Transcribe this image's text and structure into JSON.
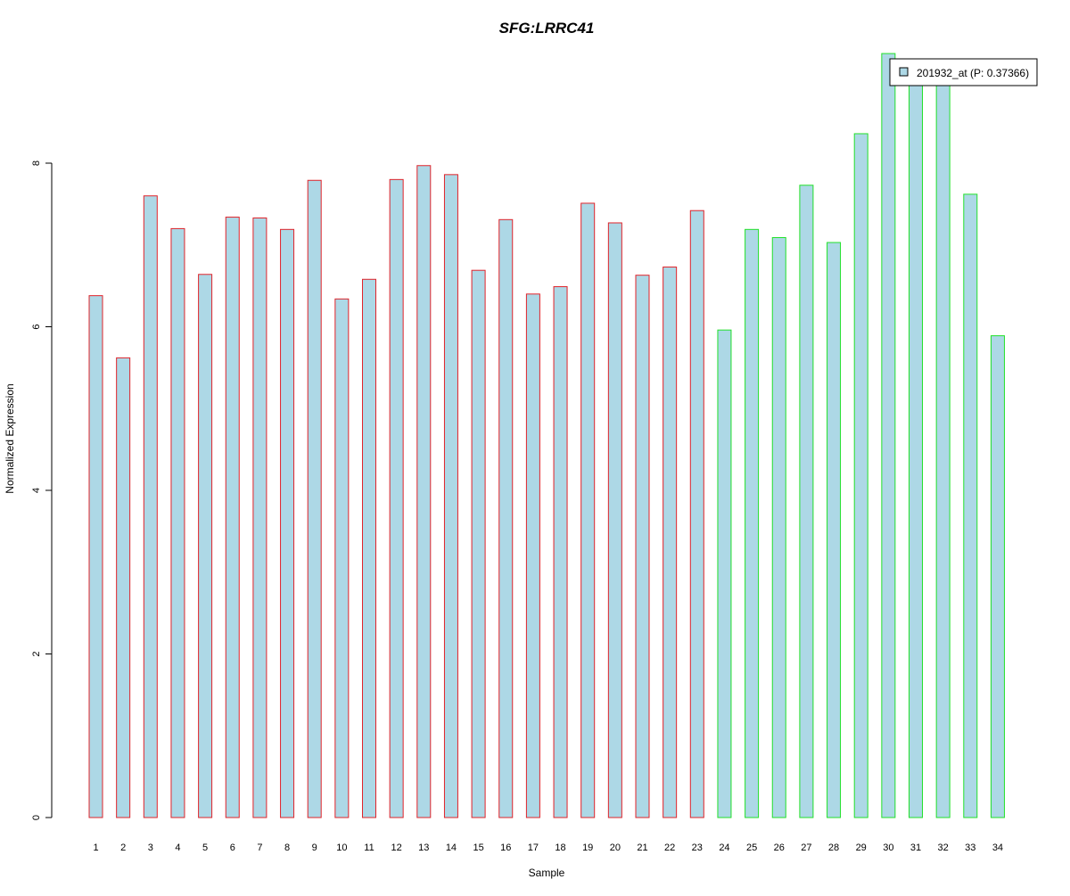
{
  "chart_data": {
    "type": "bar",
    "title": "SFG:LRRC41",
    "xlabel": "Sample",
    "ylabel": "Normalized Expression",
    "ylim": [
      0,
      9.4
    ],
    "yticks": [
      "0",
      "2",
      "4",
      "6",
      "8"
    ],
    "grid": false,
    "categories": [
      "1",
      "2",
      "3",
      "4",
      "5",
      "6",
      "7",
      "8",
      "9",
      "10",
      "11",
      "12",
      "13",
      "14",
      "15",
      "16",
      "17",
      "18",
      "19",
      "20",
      "21",
      "22",
      "23",
      "24",
      "25",
      "26",
      "27",
      "28",
      "29",
      "30",
      "31",
      "32",
      "33",
      "34"
    ],
    "values": [
      6.38,
      5.62,
      7.6,
      7.2,
      6.64,
      7.34,
      7.33,
      7.19,
      7.79,
      6.34,
      6.58,
      7.8,
      7.97,
      7.86,
      6.69,
      7.31,
      6.4,
      6.49,
      7.51,
      7.27,
      6.63,
      6.73,
      7.42,
      5.96,
      7.19,
      7.09,
      7.73,
      7.03,
      8.36,
      9.34,
      9.1,
      9.1,
      7.62,
      5.89
    ],
    "groups": [
      {
        "samples": [
          1,
          23
        ],
        "border_color": "#e0232a"
      },
      {
        "samples": [
          24,
          34
        ],
        "border_color": "#22e02a"
      }
    ],
    "bar_fill": "#add8e6",
    "title_color": "#0000cc",
    "legend": {
      "position": "top-right",
      "entries": [
        {
          "label": "201932_at (P: 0.37366)",
          "swatch_color": "#add8e6"
        }
      ]
    }
  }
}
